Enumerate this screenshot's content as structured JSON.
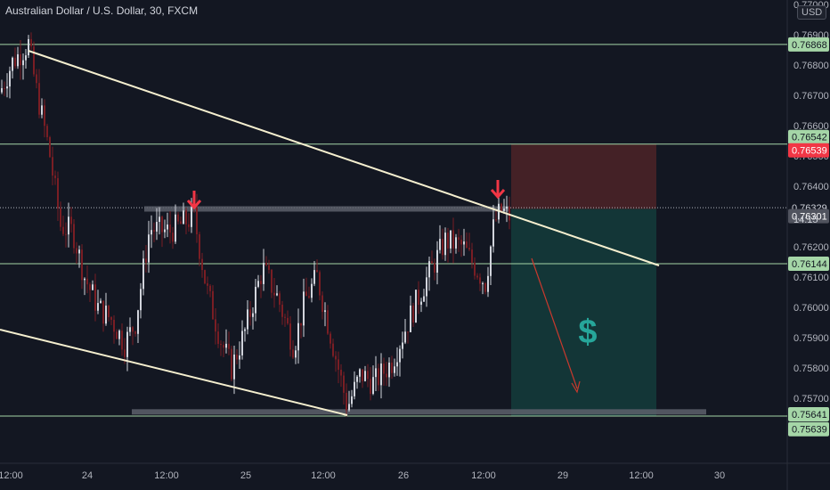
{
  "header": {
    "title": "Australian Dollar / U.S. Dollar, 30, FXCM",
    "currency": "USD"
  },
  "colors": {
    "background": "#131722",
    "up_candle": "#d1d4dc",
    "down_candle": "#7a1e24",
    "horizontal_line": "#a5d6a7",
    "trend_line": "#f5efcf",
    "zone": "#5d606b",
    "arrow": "#f23645",
    "stop_zone": "#4a2227",
    "target_zone": "#143a3a",
    "dollar_sign": "#26a69a"
  },
  "chart_data": {
    "type": "candlestick",
    "title": "Australian Dollar / U.S. Dollar, 30, FXCM",
    "y_axis": {
      "ticks": [
        0.77,
        0.769,
        0.768,
        0.767,
        0.766,
        0.765,
        0.764,
        0.763,
        0.762,
        0.761,
        0.76,
        0.759,
        0.758,
        0.757
      ],
      "tick_labels": [
        "0.77000",
        "0.76900",
        "0.76800",
        "0.76700",
        "0.76600",
        "0.76500",
        "0.76400",
        "0.76300",
        "0.76200",
        "0.76100",
        "0.76000",
        "0.75900",
        "0.75800",
        "0.75700"
      ],
      "range": [
        0.75585,
        0.77
      ]
    },
    "x_axis": {
      "tick_labels": [
        "12:00",
        "24",
        "12:00",
        "25",
        "12:00",
        "26",
        "12:00",
        "29",
        "12:00",
        "30"
      ]
    },
    "horizontal_levels": [
      0.76868,
      0.76539,
      0.76144,
      0.75641
    ],
    "price_labels": [
      {
        "value": 0.76868,
        "text": "0.76868",
        "style": "green"
      },
      {
        "value": 0.76542,
        "text": "0.76542",
        "style": "green"
      },
      {
        "value": 0.76539,
        "text": "0.76539",
        "style": "red"
      },
      {
        "value": 0.76329,
        "text": "0.76329",
        "style": "plain"
      },
      {
        "value": 0.76301,
        "text": "0.76301",
        "style": "grey"
      },
      {
        "value": 0.76144,
        "text": "0.76144",
        "style": "green"
      },
      {
        "value": 0.75641,
        "text": "0.75641",
        "style": "green"
      },
      {
        "value": 0.75639,
        "text": "0.75639",
        "style": "green"
      }
    ],
    "countdown": "14:15",
    "dotted_level": 0.76329,
    "resistance_zone": 0.76325,
    "support_zone": 0.75655,
    "path": [
      [
        0,
        0.7671
      ],
      [
        14,
        0.7681
      ],
      [
        32,
        0.7687
      ],
      [
        40,
        0.7673
      ],
      [
        55,
        0.7652
      ],
      [
        68,
        0.7627
      ],
      [
        82,
        0.7625
      ],
      [
        95,
        0.761
      ],
      [
        110,
        0.76
      ],
      [
        125,
        0.7596
      ],
      [
        140,
        0.7588
      ],
      [
        152,
        0.7595
      ],
      [
        168,
        0.7626
      ],
      [
        190,
        0.7625
      ],
      [
        218,
        0.763
      ],
      [
        232,
        0.7606
      ],
      [
        248,
        0.7589
      ],
      [
        260,
        0.758
      ],
      [
        275,
        0.7592
      ],
      [
        295,
        0.7613
      ],
      [
        312,
        0.7603
      ],
      [
        330,
        0.7587
      ],
      [
        342,
        0.7602
      ],
      [
        356,
        0.761
      ],
      [
        372,
        0.759
      ],
      [
        390,
        0.7567
      ],
      [
        405,
        0.7578
      ],
      [
        420,
        0.7575
      ],
      [
        440,
        0.7582
      ],
      [
        462,
        0.7598
      ],
      [
        480,
        0.761
      ],
      [
        500,
        0.7622
      ],
      [
        520,
        0.762
      ],
      [
        530,
        0.7615
      ],
      [
        545,
        0.7608
      ],
      [
        555,
        0.7628
      ],
      [
        563,
        0.7632
      ],
      [
        572,
        0.763
      ]
    ]
  }
}
